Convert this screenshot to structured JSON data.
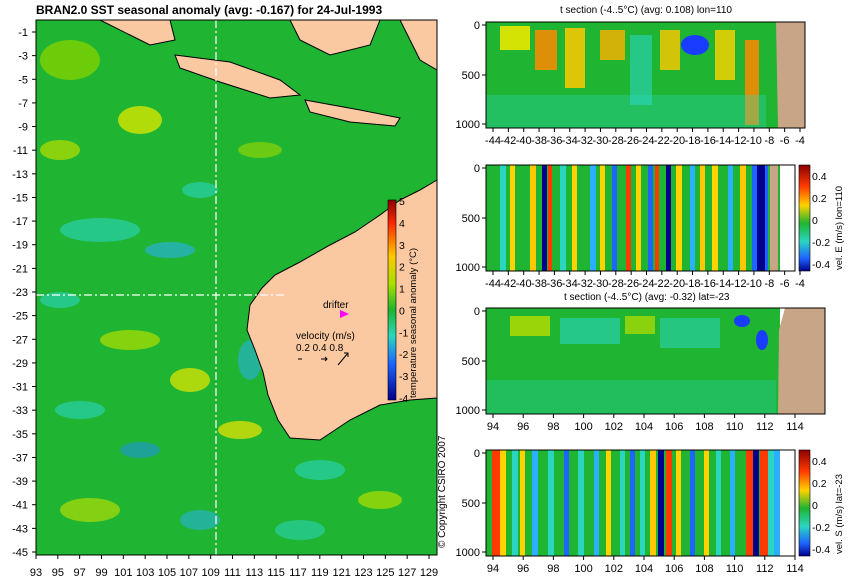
{
  "map": {
    "title": "BRAN2.0 SST seasonal anomaly (avg: -0.167) for 24-Jul-1993",
    "lat_ticks": [
      "-1",
      "-3",
      "-5",
      "-7",
      "-9",
      "-11",
      "-13",
      "-15",
      "-17",
      "-19",
      "-21",
      "-23",
      "-25",
      "-27",
      "-29",
      "-31",
      "-33",
      "-35",
      "-37",
      "-39",
      "-41",
      "-43",
      "-45"
    ],
    "lon_ticks": [
      "93",
      "95",
      "97",
      "99",
      "101",
      "103",
      "105",
      "107",
      "109",
      "111",
      "113",
      "115",
      "117",
      "119",
      "121",
      "123",
      "125",
      "127",
      "129"
    ],
    "colorbar": {
      "ticks": [
        "5",
        "4",
        "3",
        "2",
        "1",
        "0",
        "-1",
        "-2",
        "-3",
        "-4"
      ],
      "label": "temperature seasonal anomaly (°C)"
    },
    "drifter_label": "drifter",
    "velocity_legend": {
      "title": "velocity (m/s)",
      "values": "0.2 0.4 0.8"
    },
    "section_lines": {
      "lat": -23,
      "lon": 110
    }
  },
  "panel1": {
    "title": "t section (-4..5°C) (avg: 0.108) lon=110",
    "y_ticks": [
      "0",
      "500",
      "1000"
    ],
    "x_ticks": [
      "-44",
      "-42",
      "-40",
      "-38",
      "-36",
      "-34",
      "-32",
      "-30",
      "-28",
      "-26",
      "-24",
      "-22",
      "-20",
      "-18",
      "-16",
      "-14",
      "-12",
      "-10",
      "-8",
      "-6",
      "-4"
    ]
  },
  "panel2": {
    "y_ticks": [
      "0",
      "500",
      "1000"
    ],
    "x_ticks": [
      "-44",
      "-42",
      "-40",
      "-38",
      "-36",
      "-34",
      "-32",
      "-30",
      "-28",
      "-26",
      "-24",
      "-22",
      "-20",
      "-18",
      "-16",
      "-14",
      "-12",
      "-10",
      "-8",
      "-6",
      "-4"
    ],
    "colorbar_ticks": [
      "0.4",
      "0.2",
      "0",
      "-0.2",
      "-0.4"
    ],
    "colorbar_label": "vel. E (m/s) lon=110"
  },
  "panel3": {
    "title": "t section (-4..5°C) (avg: -0.32) lat=-23",
    "y_ticks": [
      "0",
      "500",
      "1000"
    ],
    "x_ticks": [
      "94",
      "96",
      "98",
      "100",
      "102",
      "104",
      "106",
      "108",
      "110",
      "112",
      "114"
    ]
  },
  "panel4": {
    "y_ticks": [
      "0",
      "500",
      "1000"
    ],
    "x_ticks": [
      "94",
      "96",
      "98",
      "100",
      "102",
      "104",
      "106",
      "108",
      "110",
      "112",
      "114"
    ],
    "colorbar_ticks": [
      "0.4",
      "0.2",
      "0",
      "-0.2",
      "-0.4"
    ],
    "colorbar_label": "vel. S (m/s) lat=-23"
  },
  "copyright": "© Copyright CSIRO 2007",
  "colors": {
    "ocean_base": "#1fb431",
    "land": "#fbc9a1",
    "section_land": "#c8a586",
    "drifter": "#ff00ff"
  }
}
